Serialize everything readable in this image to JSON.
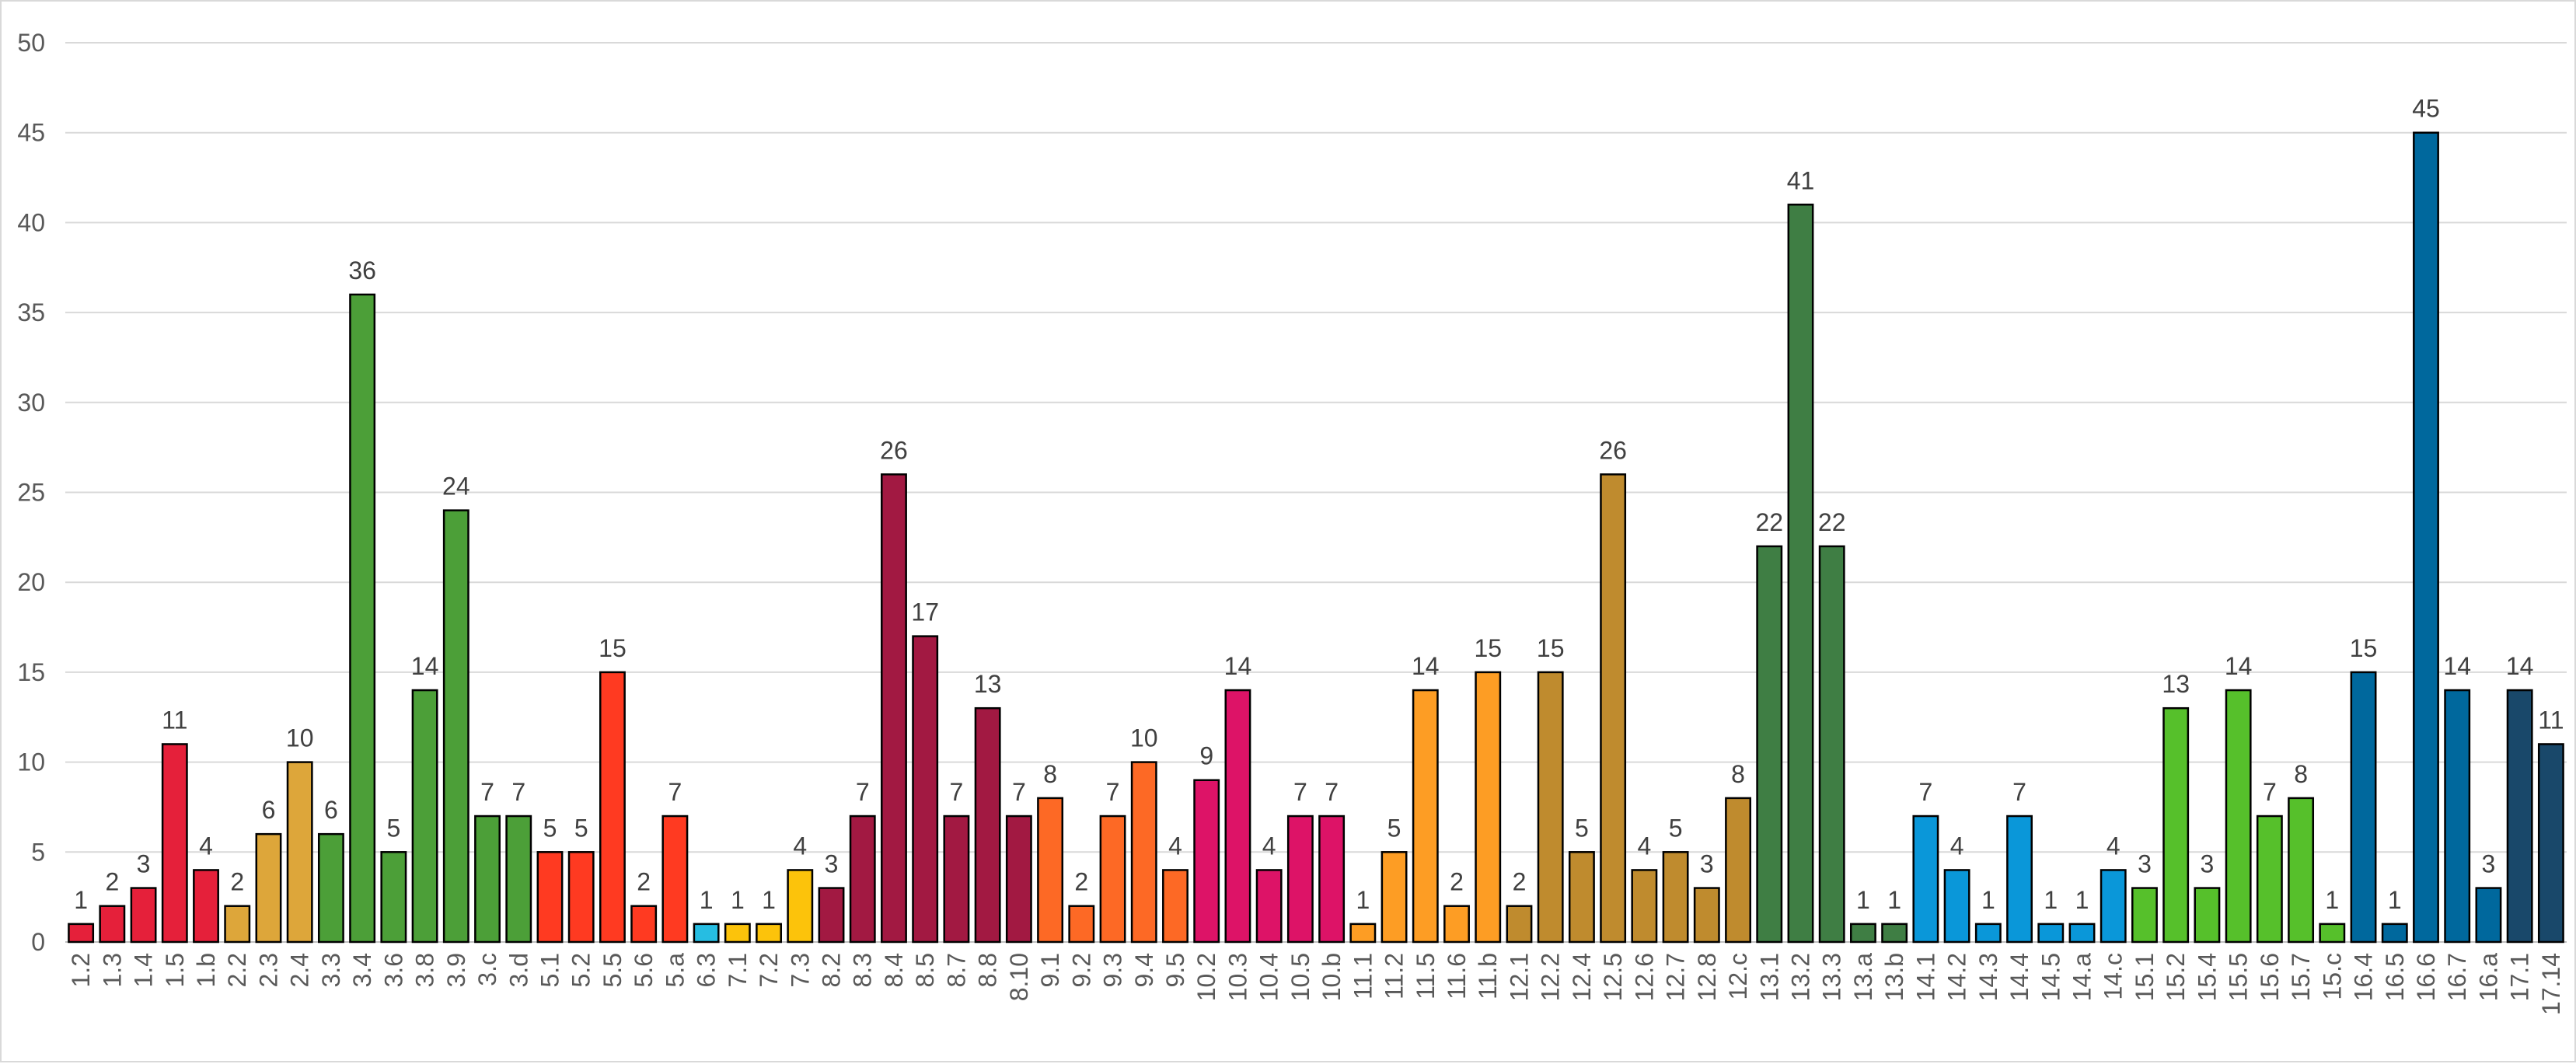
{
  "chart_data": {
    "type": "bar",
    "title": "",
    "xlabel": "",
    "ylabel": "",
    "ylim": [
      0,
      50
    ],
    "yticks": [
      0,
      5,
      10,
      15,
      20,
      25,
      30,
      35,
      40,
      45,
      50
    ],
    "grid": true,
    "legend": "none",
    "bars": [
      {
        "category": "1.2",
        "value": 1,
        "color": "#e5203a"
      },
      {
        "category": "1.3",
        "value": 2,
        "color": "#e5203a"
      },
      {
        "category": "1.4",
        "value": 3,
        "color": "#e5203a"
      },
      {
        "category": "1.5",
        "value": 11,
        "color": "#e5203a"
      },
      {
        "category": "1.b",
        "value": 4,
        "color": "#e5203a"
      },
      {
        "category": "2.2",
        "value": 2,
        "color": "#dda63a"
      },
      {
        "category": "2.3",
        "value": 6,
        "color": "#dda63a"
      },
      {
        "category": "2.4",
        "value": 10,
        "color": "#dda63a"
      },
      {
        "category": "3.3",
        "value": 6,
        "color": "#4c9f38"
      },
      {
        "category": "3.4",
        "value": 36,
        "color": "#4c9f38"
      },
      {
        "category": "3.6",
        "value": 5,
        "color": "#4c9f38"
      },
      {
        "category": "3.8",
        "value": 14,
        "color": "#4c9f38"
      },
      {
        "category": "3.9",
        "value": 24,
        "color": "#4c9f38"
      },
      {
        "category": "3.c",
        "value": 7,
        "color": "#4c9f38"
      },
      {
        "category": "3.d",
        "value": 7,
        "color": "#4c9f38"
      },
      {
        "category": "5.1",
        "value": 5,
        "color": "#ff3a21"
      },
      {
        "category": "5.2",
        "value": 5,
        "color": "#ff3a21"
      },
      {
        "category": "5.5",
        "value": 15,
        "color": "#ff3a21"
      },
      {
        "category": "5.6",
        "value": 2,
        "color": "#ff3a21"
      },
      {
        "category": "5.a",
        "value": 7,
        "color": "#ff3a21"
      },
      {
        "category": "6.3",
        "value": 1,
        "color": "#26bde2"
      },
      {
        "category": "7.1",
        "value": 1,
        "color": "#fcc30b"
      },
      {
        "category": "7.2",
        "value": 1,
        "color": "#fcc30b"
      },
      {
        "category": "7.3",
        "value": 4,
        "color": "#fcc30b"
      },
      {
        "category": "8.2",
        "value": 3,
        "color": "#a21942"
      },
      {
        "category": "8.3",
        "value": 7,
        "color": "#a21942"
      },
      {
        "category": "8.4",
        "value": 26,
        "color": "#a21942"
      },
      {
        "category": "8.5",
        "value": 17,
        "color": "#a21942"
      },
      {
        "category": "8.7",
        "value": 7,
        "color": "#a21942"
      },
      {
        "category": "8.8",
        "value": 13,
        "color": "#a21942"
      },
      {
        "category": "8.10",
        "value": 7,
        "color": "#a21942"
      },
      {
        "category": "9.1",
        "value": 8,
        "color": "#fd6925"
      },
      {
        "category": "9.2",
        "value": 2,
        "color": "#fd6925"
      },
      {
        "category": "9.3",
        "value": 7,
        "color": "#fd6925"
      },
      {
        "category": "9.4",
        "value": 10,
        "color": "#fd6925"
      },
      {
        "category": "9.5",
        "value": 4,
        "color": "#fd6925"
      },
      {
        "category": "10.2",
        "value": 9,
        "color": "#dd1367"
      },
      {
        "category": "10.3",
        "value": 14,
        "color": "#dd1367"
      },
      {
        "category": "10.4",
        "value": 4,
        "color": "#dd1367"
      },
      {
        "category": "10.5",
        "value": 7,
        "color": "#dd1367"
      },
      {
        "category": "10.b",
        "value": 7,
        "color": "#dd1367"
      },
      {
        "category": "11.1",
        "value": 1,
        "color": "#fd9d24"
      },
      {
        "category": "11.2",
        "value": 5,
        "color": "#fd9d24"
      },
      {
        "category": "11.5",
        "value": 14,
        "color": "#fd9d24"
      },
      {
        "category": "11.6",
        "value": 2,
        "color": "#fd9d24"
      },
      {
        "category": "11.b",
        "value": 15,
        "color": "#fd9d24"
      },
      {
        "category": "12.1",
        "value": 2,
        "color": "#bf8b2e"
      },
      {
        "category": "12.2",
        "value": 15,
        "color": "#bf8b2e"
      },
      {
        "category": "12.4",
        "value": 5,
        "color": "#bf8b2e"
      },
      {
        "category": "12.5",
        "value": 26,
        "color": "#bf8b2e"
      },
      {
        "category": "12.6",
        "value": 4,
        "color": "#bf8b2e"
      },
      {
        "category": "12.7",
        "value": 5,
        "color": "#bf8b2e"
      },
      {
        "category": "12.8",
        "value": 3,
        "color": "#bf8b2e"
      },
      {
        "category": "12.c",
        "value": 8,
        "color": "#bf8b2e"
      },
      {
        "category": "13.1",
        "value": 22,
        "color": "#3f7e44"
      },
      {
        "category": "13.2",
        "value": 41,
        "color": "#3f7e44"
      },
      {
        "category": "13.3",
        "value": 22,
        "color": "#3f7e44"
      },
      {
        "category": "13.a",
        "value": 1,
        "color": "#3f7e44"
      },
      {
        "category": "13.b",
        "value": 1,
        "color": "#3f7e44"
      },
      {
        "category": "14.1",
        "value": 7,
        "color": "#0a97d9"
      },
      {
        "category": "14.2",
        "value": 4,
        "color": "#0a97d9"
      },
      {
        "category": "14.3",
        "value": 1,
        "color": "#0a97d9"
      },
      {
        "category": "14.4",
        "value": 7,
        "color": "#0a97d9"
      },
      {
        "category": "14.5",
        "value": 1,
        "color": "#0a97d9"
      },
      {
        "category": "14.a",
        "value": 1,
        "color": "#0a97d9"
      },
      {
        "category": "14.c",
        "value": 4,
        "color": "#0a97d9"
      },
      {
        "category": "15.1",
        "value": 3,
        "color": "#56c02b"
      },
      {
        "category": "15.2",
        "value": 13,
        "color": "#56c02b"
      },
      {
        "category": "15.4",
        "value": 3,
        "color": "#56c02b"
      },
      {
        "category": "15.5",
        "value": 14,
        "color": "#56c02b"
      },
      {
        "category": "15.6",
        "value": 7,
        "color": "#56c02b"
      },
      {
        "category": "15.7",
        "value": 8,
        "color": "#56c02b"
      },
      {
        "category": "15.c",
        "value": 1,
        "color": "#56c02b"
      },
      {
        "category": "16.4",
        "value": 15,
        "color": "#00689d"
      },
      {
        "category": "16.5",
        "value": 1,
        "color": "#00689d"
      },
      {
        "category": "16.6",
        "value": 45,
        "color": "#00689d"
      },
      {
        "category": "16.7",
        "value": 14,
        "color": "#00689d"
      },
      {
        "category": "16.a",
        "value": 3,
        "color": "#00689d"
      },
      {
        "category": "17.1",
        "value": 14,
        "color": "#19486a"
      },
      {
        "category": "17.14",
        "value": 11,
        "color": "#19486a"
      }
    ]
  }
}
